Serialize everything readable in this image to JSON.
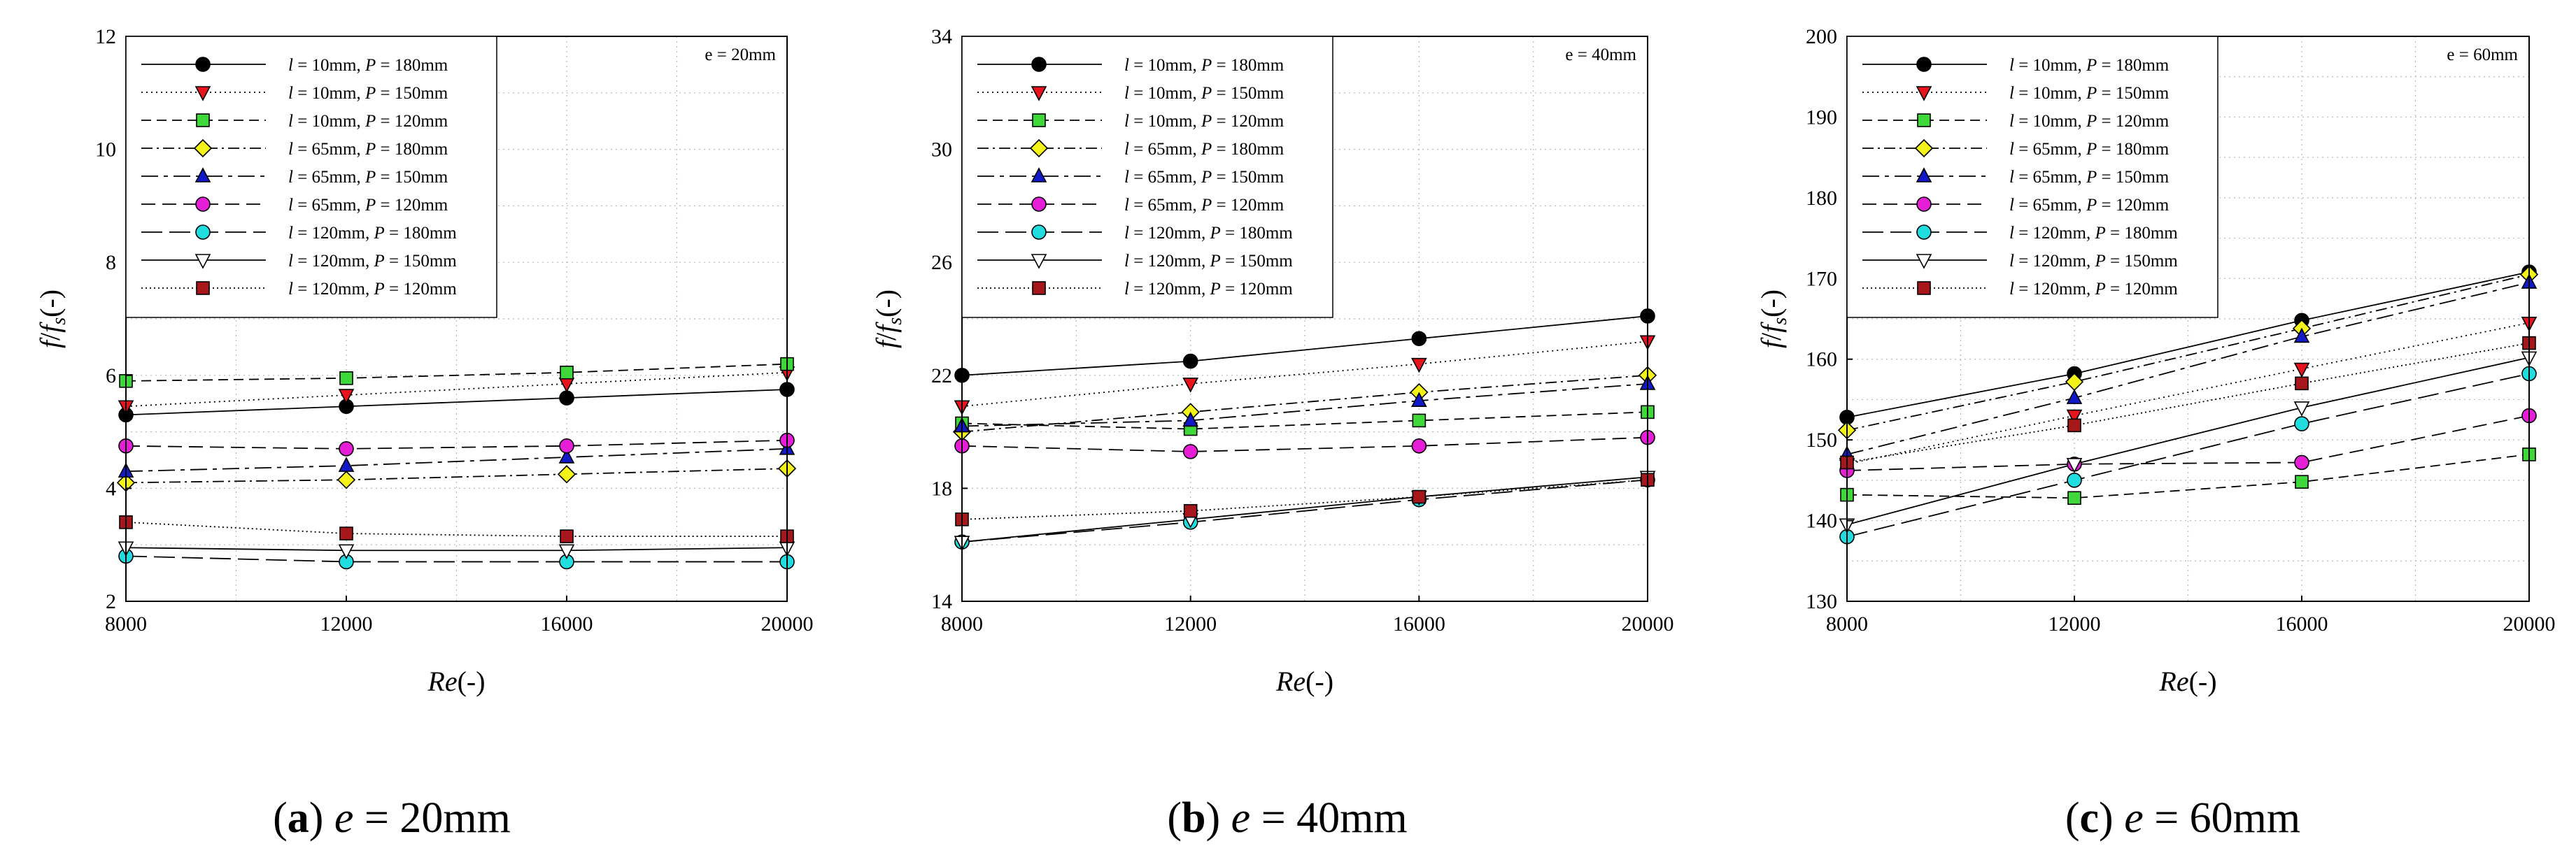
{
  "chart_data": [
    {
      "type": "line",
      "panel_letter": "a",
      "caption_var": "e",
      "caption_value": "= 20mm",
      "annotation": "e = 20mm",
      "xlabel": "Re",
      "xlabel_suffix": "(-)",
      "ylabel_f": "f",
      "ylabel_sep": "/",
      "ylabel_fs": "f",
      "ylabel_sub": "s",
      "ylabel_suffix": "(-)",
      "xlim": [
        8000,
        20000
      ],
      "ylim": [
        2,
        12
      ],
      "xticks": [
        8000,
        12000,
        16000,
        20000
      ],
      "yticks": [
        2,
        4,
        6,
        8,
        10,
        12
      ],
      "x": [
        8000,
        12000,
        16000,
        20000
      ],
      "legend_position": "top-left",
      "series": [
        {
          "name_l": "l",
          "name_lval": " = 10mm, ",
          "name_p": "P",
          "name_pval": " = 180mm",
          "values": [
            5.3,
            5.45,
            5.6,
            5.75
          ]
        },
        {
          "name_l": "l",
          "name_lval": " = 10mm, ",
          "name_p": "P",
          "name_pval": " = 150mm",
          "values": [
            5.45,
            5.65,
            5.85,
            6.05
          ]
        },
        {
          "name_l": "l",
          "name_lval": " = 10mm, ",
          "name_p": "P",
          "name_pval": " = 120mm",
          "values": [
            5.9,
            5.95,
            6.05,
            6.2
          ]
        },
        {
          "name_l": "l",
          "name_lval": " = 65mm, ",
          "name_p": "P",
          "name_pval": " = 180mm",
          "values": [
            4.1,
            4.15,
            4.25,
            4.35
          ]
        },
        {
          "name_l": "l",
          "name_lval": " = 65mm, ",
          "name_p": "P",
          "name_pval": " = 150mm",
          "values": [
            4.3,
            4.4,
            4.55,
            4.7
          ]
        },
        {
          "name_l": "l",
          "name_lval": " = 65mm, ",
          "name_p": "P",
          "name_pval": " = 120mm",
          "values": [
            4.75,
            4.7,
            4.75,
            4.85
          ]
        },
        {
          "name_l": "l",
          "name_lval": " = 120mm, ",
          "name_p": "P",
          "name_pval": " = 180mm",
          "values": [
            2.8,
            2.7,
            2.7,
            2.7
          ]
        },
        {
          "name_l": "l",
          "name_lval": " = 120mm, ",
          "name_p": "P",
          "name_pval": " = 150mm",
          "values": [
            2.95,
            2.9,
            2.9,
            2.95
          ]
        },
        {
          "name_l": "l",
          "name_lval": " = 120mm, ",
          "name_p": "P",
          "name_pval": " = 120mm",
          "values": [
            3.4,
            3.2,
            3.15,
            3.15
          ]
        }
      ]
    },
    {
      "type": "line",
      "panel_letter": "b",
      "caption_var": "e",
      "caption_value": "= 40mm",
      "annotation": "e = 40mm",
      "xlabel": "Re",
      "xlabel_suffix": "(-)",
      "ylabel_f": "f",
      "ylabel_sep": "/",
      "ylabel_fs": "f",
      "ylabel_sub": "s",
      "ylabel_suffix": "(-)",
      "xlim": [
        8000,
        20000
      ],
      "ylim": [
        14,
        34
      ],
      "xticks": [
        8000,
        12000,
        16000,
        20000
      ],
      "yticks": [
        14,
        18,
        22,
        26,
        30,
        34
      ],
      "x": [
        8000,
        12000,
        16000,
        20000
      ],
      "legend_position": "top-left",
      "series": [
        {
          "name_l": "l",
          "name_lval": " = 10mm, ",
          "name_p": "P",
          "name_pval": " = 180mm",
          "values": [
            22.0,
            22.5,
            23.3,
            24.1
          ]
        },
        {
          "name_l": "l",
          "name_lval": " = 10mm, ",
          "name_p": "P",
          "name_pval": " = 150mm",
          "values": [
            20.9,
            21.7,
            22.4,
            23.2
          ]
        },
        {
          "name_l": "l",
          "name_lval": " = 10mm, ",
          "name_p": "P",
          "name_pval": " = 120mm",
          "values": [
            20.3,
            20.1,
            20.4,
            20.7
          ]
        },
        {
          "name_l": "l",
          "name_lval": " = 65mm, ",
          "name_p": "P",
          "name_pval": " = 180mm",
          "values": [
            20.0,
            20.7,
            21.4,
            22.0
          ]
        },
        {
          "name_l": "l",
          "name_lval": " = 65mm, ",
          "name_p": "P",
          "name_pval": " = 150mm",
          "values": [
            20.2,
            20.4,
            21.1,
            21.7
          ]
        },
        {
          "name_l": "l",
          "name_lval": " = 65mm, ",
          "name_p": "P",
          "name_pval": " = 120mm",
          "values": [
            19.5,
            19.3,
            19.5,
            19.8
          ]
        },
        {
          "name_l": "l",
          "name_lval": " = 120mm, ",
          "name_p": "P",
          "name_pval": " = 180mm",
          "values": [
            16.1,
            16.8,
            17.6,
            18.3
          ]
        },
        {
          "name_l": "l",
          "name_lval": " = 120mm, ",
          "name_p": "P",
          "name_pval": " = 150mm",
          "values": [
            16.1,
            16.9,
            17.7,
            18.4
          ]
        },
        {
          "name_l": "l",
          "name_lval": " = 120mm, ",
          "name_p": "P",
          "name_pval": " = 120mm",
          "values": [
            16.9,
            17.2,
            17.7,
            18.3
          ]
        }
      ]
    },
    {
      "type": "line",
      "panel_letter": "c",
      "caption_var": "e",
      "caption_value": "= 60mm",
      "annotation": "e = 60mm",
      "xlabel": "Re",
      "xlabel_suffix": "(-)",
      "ylabel_f": "f",
      "ylabel_sep": "/",
      "ylabel_fs": "f",
      "ylabel_sub": "s",
      "ylabel_suffix": "(-)",
      "xlim": [
        8000,
        20000
      ],
      "ylim": [
        130,
        200
      ],
      "xticks": [
        8000,
        12000,
        16000,
        20000
      ],
      "yticks": [
        130,
        140,
        150,
        160,
        170,
        180,
        190,
        200
      ],
      "x": [
        8000,
        12000,
        16000,
        20000
      ],
      "legend_position": "top-left",
      "series": [
        {
          "name_l": "l",
          "name_lval": " = 10mm, ",
          "name_p": "P",
          "name_pval": " = 180mm",
          "values": [
            152.8,
            158.2,
            164.8,
            170.8
          ]
        },
        {
          "name_l": "l",
          "name_lval": " = 10mm, ",
          "name_p": "P",
          "name_pval": " = 150mm",
          "values": [
            147.0,
            153.0,
            158.8,
            164.5
          ]
        },
        {
          "name_l": "l",
          "name_lval": " = 10mm, ",
          "name_p": "P",
          "name_pval": " = 120mm",
          "values": [
            143.2,
            142.8,
            144.8,
            148.2
          ]
        },
        {
          "name_l": "l",
          "name_lval": " = 65mm, ",
          "name_p": "P",
          "name_pval": " = 180mm",
          "values": [
            151.2,
            157.2,
            163.8,
            170.5
          ]
        },
        {
          "name_l": "l",
          "name_lval": " = 65mm, ",
          "name_p": "P",
          "name_pval": " = 150mm",
          "values": [
            148.2,
            155.2,
            162.8,
            169.5
          ]
        },
        {
          "name_l": "l",
          "name_lval": " = 65mm, ",
          "name_p": "P",
          "name_pval": " = 120mm",
          "values": [
            146.2,
            147.0,
            147.2,
            153.0
          ]
        },
        {
          "name_l": "l",
          "name_lval": " = 120mm, ",
          "name_p": "P",
          "name_pval": " = 180mm",
          "values": [
            138.0,
            145.0,
            152.0,
            158.2
          ]
        },
        {
          "name_l": "l",
          "name_lval": " = 120mm, ",
          "name_p": "P",
          "name_pval": " = 150mm",
          "values": [
            139.5,
            147.0,
            154.0,
            160.2
          ]
        },
        {
          "name_l": "l",
          "name_lval": " = 120mm, ",
          "name_p": "P",
          "name_pval": " = 120mm",
          "values": [
            147.2,
            151.8,
            157.0,
            162.0
          ]
        }
      ]
    }
  ],
  "series_styles": [
    {
      "marker": "circle",
      "color": "#000000",
      "dash": ""
    },
    {
      "marker": "triangle-down",
      "color": "#e8141d",
      "dash": "2 5"
    },
    {
      "marker": "square",
      "color": "#3fd83a",
      "dash": "14 8"
    },
    {
      "marker": "diamond",
      "color": "#f3f319",
      "dash": "16 6 3 6"
    },
    {
      "marker": "triangle-up",
      "color": "#1219c8",
      "dash": "24 8 6 8"
    },
    {
      "marker": "circle",
      "color": "#e61ed8",
      "dash": "20 10"
    },
    {
      "marker": "circle",
      "color": "#22dde0",
      "dash": "30 10"
    },
    {
      "marker": "triangle-down",
      "color": "#ffffff",
      "dash": ""
    },
    {
      "marker": "square",
      "color": "#a5171a",
      "dash": "2 4"
    }
  ]
}
